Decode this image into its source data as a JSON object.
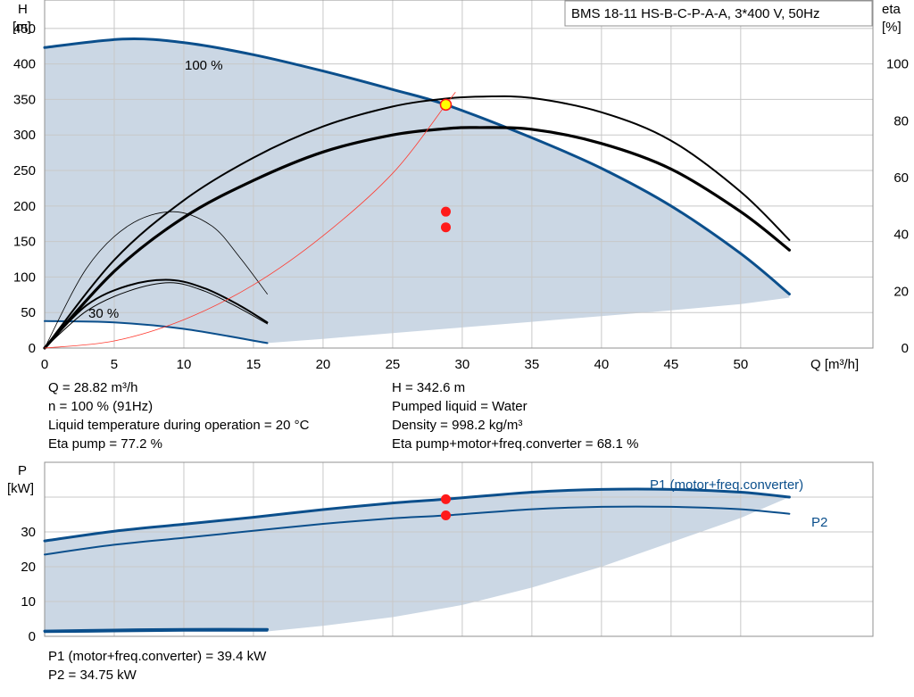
{
  "header": {
    "pump_label": "BMS 18-11 HS-B-C-P-A-A, 3*400 V, 50Hz"
  },
  "info": {
    "q": "Q = 28.82 m³/h",
    "h": "H = 342.6 m",
    "n": "n = 100 % (91Hz)",
    "liquid": "Pumped liquid = Water",
    "temp": "Liquid temperature during operation = 20 °C",
    "density": "Density = 998.2 kg/m³",
    "eta_pump": "Eta pump = 77.2 %",
    "eta_total": "Eta pump+motor+freq.converter = 68.1 %",
    "p1": "P1 (motor+freq.converter) = 39.4 kW",
    "p2": "P2 = 34.75 kW"
  },
  "chart_data": [
    {
      "type": "line",
      "xlabel": "Q [m³/h]",
      "ylabel_left": [
        "H",
        "[m]"
      ],
      "ylabel_right": [
        "eta",
        "[%]"
      ],
      "xlim": [
        0,
        59.5
      ],
      "ylim": [
        0,
        490
      ],
      "y2lim": [
        0,
        122.5
      ],
      "xticks": [
        0,
        5,
        10,
        15,
        20,
        25,
        30,
        35,
        40,
        45,
        50
      ],
      "yticks": [
        0,
        50,
        100,
        150,
        200,
        250,
        300,
        350,
        400,
        450
      ],
      "y2ticks": [
        0,
        20,
        40,
        60,
        80,
        100
      ],
      "grid": true,
      "colors": {
        "curve": "#0b4f8c",
        "area": "#cbd7e4",
        "eta": "#000000",
        "system": "#ff3b30",
        "point": "#ff1a1a",
        "duty_point": "#ffff00"
      },
      "series": [
        {
          "label": "100 %",
          "x": [
            0,
            5.6,
            10,
            15,
            20,
            25,
            28.82,
            35,
            40,
            45,
            50,
            53.5
          ],
          "y": [
            423,
            435,
            430,
            413,
            390,
            364,
            342.6,
            296,
            253,
            200,
            133,
            76
          ]
        },
        {
          "label": "30 %",
          "x": [
            0,
            5,
            10,
            16
          ],
          "y": [
            38,
            36,
            27,
            7
          ]
        },
        {
          "axis": "right",
          "x": [
            0,
            5,
            10,
            15,
            20,
            25,
            28.82,
            31.5,
            35,
            40,
            45,
            50,
            53.5
          ],
          "y": [
            0,
            31,
            52,
            67,
            78,
            85,
            87.8,
            88.5,
            88,
            83,
            73,
            55,
            38
          ]
        },
        {
          "axis": "right",
          "x": [
            0,
            5,
            10,
            15,
            20,
            25,
            28.82,
            31,
            35,
            40,
            45,
            50,
            53.5
          ],
          "y": [
            0,
            27,
            46,
            59,
            69,
            75,
            77.2,
            77.6,
            77,
            72,
            63,
            48,
            34.5
          ]
        },
        {
          "axis": "right",
          "x": [
            0,
            3,
            6,
            9.2,
            12,
            14,
            16
          ],
          "y": [
            0,
            28,
            43,
            48,
            43,
            32,
            19
          ]
        },
        {
          "axis": "right",
          "x": [
            0,
            3,
            6,
            9,
            11.5,
            14,
            16
          ],
          "y": [
            0,
            15,
            22,
            24,
            21,
            15,
            9
          ]
        },
        {
          "axis": "right",
          "x": [
            0,
            3,
            6,
            9,
            11.5,
            14,
            16
          ],
          "y": [
            0,
            13,
            20,
            23,
            20,
            14,
            8.5
          ]
        },
        {
          "x": [
            0,
            5,
            10,
            15,
            20,
            25,
            28.82,
            29.5
          ],
          "y": [
            0,
            10,
            40,
            89,
            158,
            246,
            342.6,
            360
          ]
        }
      ],
      "area_lower": {
        "x": [
          16,
          20,
          25,
          30,
          35,
          40,
          45,
          50,
          53.5
        ],
        "y": [
          7,
          13,
          21,
          29,
          37,
          45,
          53,
          62,
          71
        ]
      },
      "points": [
        {
          "x": 28.82,
          "y": 342.6,
          "style": "duty"
        },
        {
          "x": 28.82,
          "y": 192,
          "style": "red"
        },
        {
          "x": 28.82,
          "y": 170,
          "style": "red"
        }
      ]
    },
    {
      "type": "line",
      "ylabel": [
        "P",
        "[kW]"
      ],
      "xlim": [
        0,
        59.5
      ],
      "ylim": [
        0,
        50
      ],
      "yticks": [
        0,
        10,
        20,
        30
      ],
      "grid": true,
      "series": [
        {
          "label": "P1 (motor+freq.converter)",
          "x": [
            0,
            5,
            10,
            15,
            20,
            25,
            28.82,
            35,
            40,
            45,
            50,
            53.5
          ],
          "y": [
            27.4,
            30.2,
            32.2,
            34.2,
            36.4,
            38.3,
            39.4,
            41.4,
            42.2,
            42.2,
            41.4,
            40
          ]
        },
        {
          "label": "P2",
          "x": [
            0,
            5,
            10,
            15,
            20,
            25,
            28.82,
            35,
            40,
            45,
            50,
            53.5
          ],
          "y": [
            23.5,
            26.3,
            28.3,
            30.3,
            32.3,
            33.9,
            34.75,
            36.5,
            37.2,
            37.2,
            36.5,
            35.2
          ]
        },
        {
          "x": [
            0,
            5,
            10,
            16
          ],
          "y": [
            1.5,
            1.8,
            2,
            2
          ]
        },
        {
          "x": [
            0,
            5,
            10,
            16
          ],
          "y": [
            1.2,
            1.4,
            1.6,
            1.6
          ]
        }
      ],
      "area_lower": {
        "x": [
          16,
          20,
          25,
          30,
          35,
          40,
          45,
          50,
          53.5
        ],
        "y": [
          1.4,
          3,
          5.5,
          9,
          14,
          20,
          27,
          34,
          40
        ]
      },
      "points": [
        {
          "x": 28.82,
          "y": 39.4,
          "style": "red"
        },
        {
          "x": 28.82,
          "y": 34.75,
          "style": "red"
        }
      ]
    }
  ]
}
